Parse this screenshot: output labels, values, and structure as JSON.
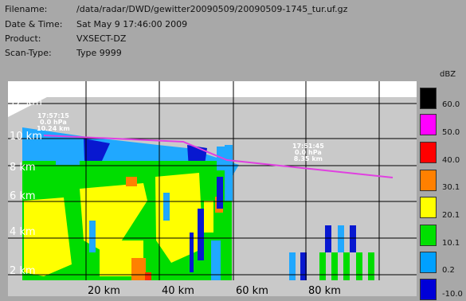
{
  "header": {
    "filename_label": "Filename:",
    "filename_value": "/data/radar/DWD/gewitter20090509/20090509-1745_tur.uf.gz",
    "datetime_label": "Date & Time:",
    "datetime_value": "Sat May 9 17:46:00 2009",
    "product_label": "Product:",
    "product_value": "VXSECT-DZ",
    "scantype_label": "Scan-Type:",
    "scantype_value": "Type 9999"
  },
  "axes": {
    "y_labels": [
      "2 km",
      "4 km",
      "6 km",
      "8 km",
      "10 km",
      "12 km"
    ],
    "x_labels": [
      "20 km",
      "40 km",
      "60 km",
      "80 km"
    ]
  },
  "legend": {
    "units": "dBZ",
    "levels": [
      {
        "value": "60.0",
        "color": "#000000"
      },
      {
        "value": "50.0",
        "color": "#ff00ff"
      },
      {
        "value": "40.0",
        "color": "#ff0000"
      },
      {
        "value": "30.1",
        "color": "#ff8000"
      },
      {
        "value": "20.1",
        "color": "#ffff00"
      },
      {
        "value": "10.1",
        "color": "#00e000"
      },
      {
        "value": "0.2",
        "color": "#00a0ff"
      },
      {
        "value": "-10.0",
        "color": "#0000d8"
      }
    ]
  },
  "track": {
    "line_color": "#e040e0",
    "marker1": {
      "time": "17:57:15",
      "pressure": "0.0 hPa",
      "altitude": "10.24 km"
    },
    "marker2": {
      "time": "17:51:45",
      "pressure": "0.0 hPa",
      "altitude": "8.35 km"
    }
  }
}
